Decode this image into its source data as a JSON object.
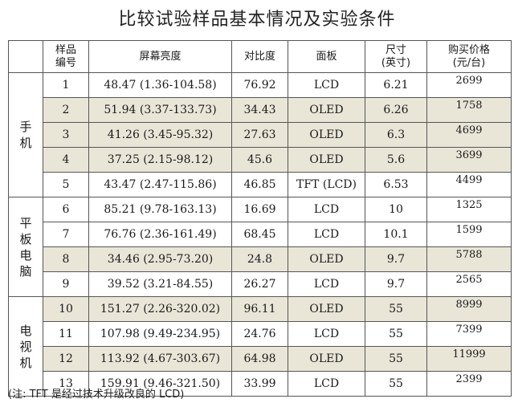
{
  "title": "比较试验样品基本情况及实验条件",
  "headers": {
    "sample_no": "样品\n编号",
    "brightness": "屏幕亮度",
    "contrast": "对比度",
    "panel": "面板",
    "size": "尺寸\n(英寸)",
    "price": "购买价格\n(元/台)"
  },
  "groups": [
    {
      "name": [
        "手",
        "机"
      ],
      "rows": [
        {
          "no": "1",
          "brightness": "48.47 (1.36-104.58)",
          "contrast": "76.92",
          "panel": "LCD",
          "size": "6.21",
          "price": "2699",
          "shade": false
        },
        {
          "no": "2",
          "brightness": "51.94 (3.37-133.73)",
          "contrast": "34.43",
          "panel": "OLED",
          "size": "6.26",
          "price": "1758",
          "shade": true
        },
        {
          "no": "3",
          "brightness": "41.26 (3.45-95.32)",
          "contrast": "27.63",
          "panel": "OLED",
          "size": "6.3",
          "price": "4699",
          "shade": true
        },
        {
          "no": "4",
          "brightness": "37.25 (2.15-98.12)",
          "contrast": "45.6",
          "panel": "OLED",
          "size": "5.6",
          "price": "3699",
          "shade": true
        },
        {
          "no": "5",
          "brightness": "43.47 (2.47-115.86)",
          "contrast": "46.85",
          "panel": "TFT (LCD)",
          "size": "6.53",
          "price": "4499",
          "shade": false
        }
      ]
    },
    {
      "name": [
        "平",
        "板",
        "电",
        "脑"
      ],
      "rows": [
        {
          "no": "6",
          "brightness": "85.21 (9.78-163.13)",
          "contrast": "16.69",
          "panel": "LCD",
          "size": "10",
          "price": "1325",
          "shade": false
        },
        {
          "no": "7",
          "brightness": "76.76 (2.36-161.49)",
          "contrast": "68.45",
          "panel": "LCD",
          "size": "10.1",
          "price": "1599",
          "shade": false
        },
        {
          "no": "8",
          "brightness": "34.46 (2.95-73.20)",
          "contrast": "24.8",
          "panel": "OLED",
          "size": "9.7",
          "price": "5788",
          "shade": true
        },
        {
          "no": "9",
          "brightness": "39.52 (3.21-84.55)",
          "contrast": "26.27",
          "panel": "LCD",
          "size": "9.7",
          "price": "2565",
          "shade": false
        }
      ]
    },
    {
      "name": [
        "电",
        "视",
        "机"
      ],
      "rows": [
        {
          "no": "10",
          "brightness": "151.27 (2.26-320.02)",
          "contrast": "96.11",
          "panel": "OLED",
          "size": "55",
          "price": "8999",
          "shade": true
        },
        {
          "no": "11",
          "brightness": "107.98 (9.49-234.95)",
          "contrast": "24.76",
          "panel": "LCD",
          "size": "55",
          "price": "7399",
          "shade": false
        },
        {
          "no": "12",
          "brightness": "113.92 (4.67-303.67)",
          "contrast": "64.98",
          "panel": "OLED",
          "size": "55",
          "price": "11999",
          "shade": true
        },
        {
          "no": "13",
          "brightness": "159.91 (9.46-321.50)",
          "contrast": "33.99",
          "panel": "LCD",
          "size": "55",
          "price": "2399",
          "shade": false
        }
      ]
    }
  ],
  "note": "(注: TFT 是经过技术升级改良的 LCD)"
}
